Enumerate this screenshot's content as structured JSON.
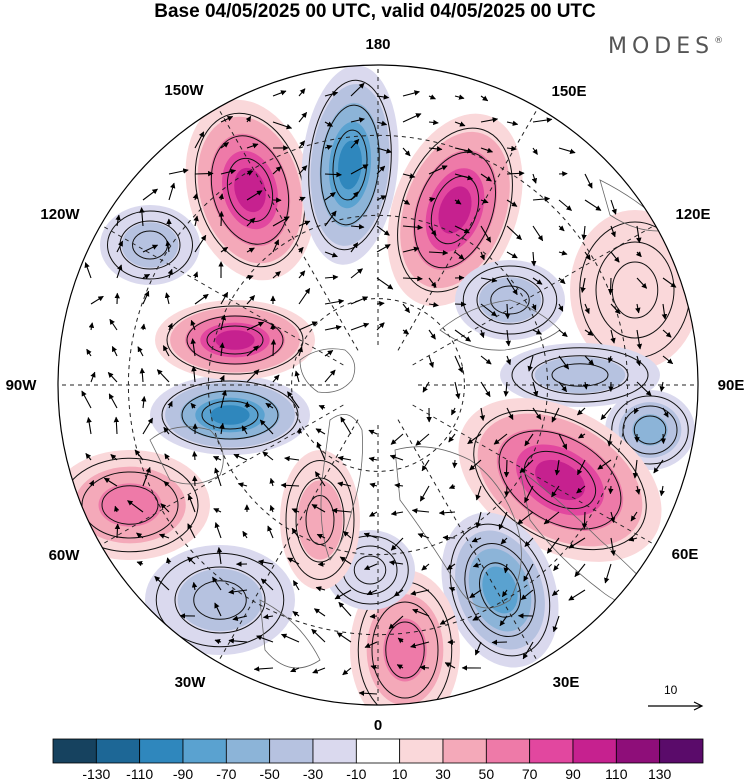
{
  "title": "Base 04/05/2025 00 UTC, valid 04/05/2025 00 UTC",
  "brand": {
    "name": "MODES",
    "mark": "®"
  },
  "projection": "north-polar-stereographic",
  "longitude_labels": [
    "180",
    "150E",
    "120E",
    "90E",
    "60E",
    "30E",
    "0",
    "30W",
    "60W",
    "90W",
    "120W",
    "150W"
  ],
  "reference_vector": {
    "label": "10"
  },
  "colorbar": {
    "ticks": [
      "-130",
      "-110",
      "-90",
      "-70",
      "-50",
      "-30",
      "-10",
      "10",
      "30",
      "50",
      "70",
      "90",
      "110",
      "130"
    ],
    "colors": [
      "#16425f",
      "#1d6796",
      "#2f87bd",
      "#5aa2d0",
      "#8cb4d8",
      "#b6c2e0",
      "#dad9ee",
      "#ffffff",
      "#fad8da",
      "#f4a9b9",
      "#ee7aa8",
      "#e2479f",
      "#c6218f",
      "#8e0e79",
      "#5a0b6a"
    ]
  },
  "anomaly_cells": [
    {
      "id": "pos-150W",
      "sign": "positive",
      "peak": 110
    },
    {
      "id": "neg-180",
      "sign": "negative",
      "peak": -110
    },
    {
      "id": "pos-160E",
      "sign": "positive",
      "peak": 110
    },
    {
      "id": "neg-135E",
      "sign": "negative",
      "peak": -50
    },
    {
      "id": "pos-115E",
      "sign": "positive",
      "peak": 30
    },
    {
      "id": "neg-100E",
      "sign": "negative",
      "peak": -50
    },
    {
      "id": "neg-80E",
      "sign": "negative",
      "peak": -70
    },
    {
      "id": "pos-60E",
      "sign": "positive",
      "peak": 110
    },
    {
      "id": "neg-35E",
      "sign": "negative",
      "peak": -90
    },
    {
      "id": "pos-0",
      "sign": "positive",
      "peak": 70
    },
    {
      "id": "neg-15W",
      "sign": "negative",
      "peak": -30
    },
    {
      "id": "pos-45W",
      "sign": "positive",
      "peak": 50
    },
    {
      "id": "pos-65W",
      "sign": "positive",
      "peak": 70
    },
    {
      "id": "neg-40W",
      "sign": "negative",
      "peak": -50
    },
    {
      "id": "neg-90W",
      "sign": "negative",
      "peak": -110
    },
    {
      "id": "pos-100W",
      "sign": "positive",
      "peak": 110
    },
    {
      "id": "neg-120W",
      "sign": "negative",
      "peak": -50
    }
  ]
}
